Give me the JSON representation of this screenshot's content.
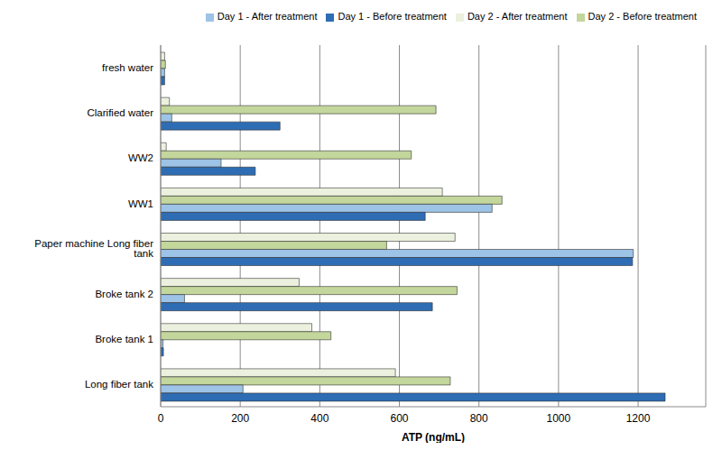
{
  "chart_data": {
    "type": "bar",
    "orientation": "horizontal",
    "xlabel": "ATP (ng/mL)",
    "categories": [
      "fresh water",
      "Clarified water",
      "WW2",
      "WW1",
      "Paper machine Long fiber tank",
      "Broke tank 2",
      "Broke tank 1",
      "Long fiber tank"
    ],
    "series": [
      {
        "name": "Day 2 - After treatment",
        "color": "#ebf1de",
        "values": [
          10,
          22,
          14,
          708,
          740,
          348,
          380,
          590
        ]
      },
      {
        "name": "Day 2 - Before treatment",
        "color": "#c3d69b",
        "values": [
          12,
          692,
          630,
          858,
          568,
          745,
          428,
          728
        ]
      },
      {
        "name": "Day 1 - After treatment",
        "color": "#9dc3e6",
        "values": [
          10,
          28,
          152,
          833,
          1188,
          60,
          6,
          207
        ]
      },
      {
        "name": "Day 1 - Before treatment",
        "color": "#2e6db4",
        "values": [
          10,
          300,
          238,
          665,
          1186,
          683,
          7,
          1268
        ]
      }
    ],
    "xlim": [
      0,
      1370
    ],
    "xticks": [
      0,
      200,
      400,
      600,
      800,
      1000,
      1200
    ],
    "grid": true,
    "legend": "top right"
  }
}
